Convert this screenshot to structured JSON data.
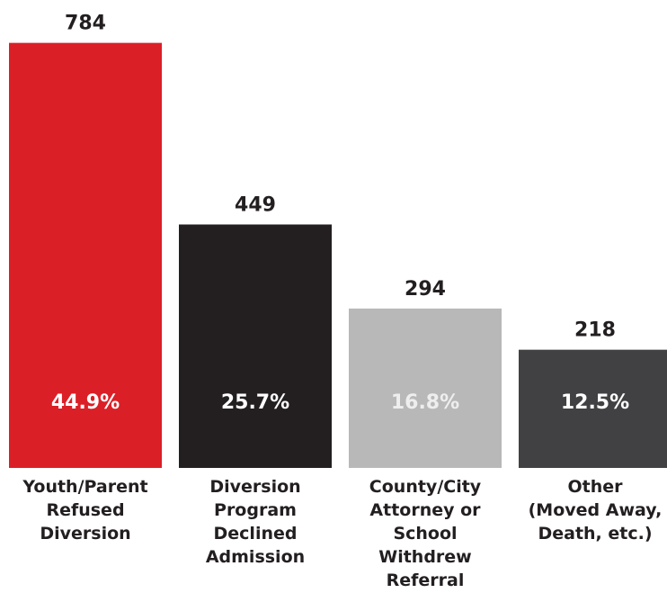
{
  "chart_data": {
    "type": "bar",
    "categories": [
      "Youth/Parent\nRefused\nDiversion",
      "Diversion\nProgram\nDeclined\nAdmission",
      "County/City\nAttorney or\nSchool\nWithdrew\nReferral",
      "Other\n(Moved Away,\nDeath, etc.)"
    ],
    "values": [
      784,
      449,
      294,
      218
    ],
    "share_labels": [
      "44.9%",
      "25.7%",
      "16.8%",
      "12.5%"
    ],
    "colors": [
      "#db1f26",
      "#231f20",
      "#b8b8b8",
      "#414042"
    ],
    "ylim": [
      0,
      800
    ]
  }
}
